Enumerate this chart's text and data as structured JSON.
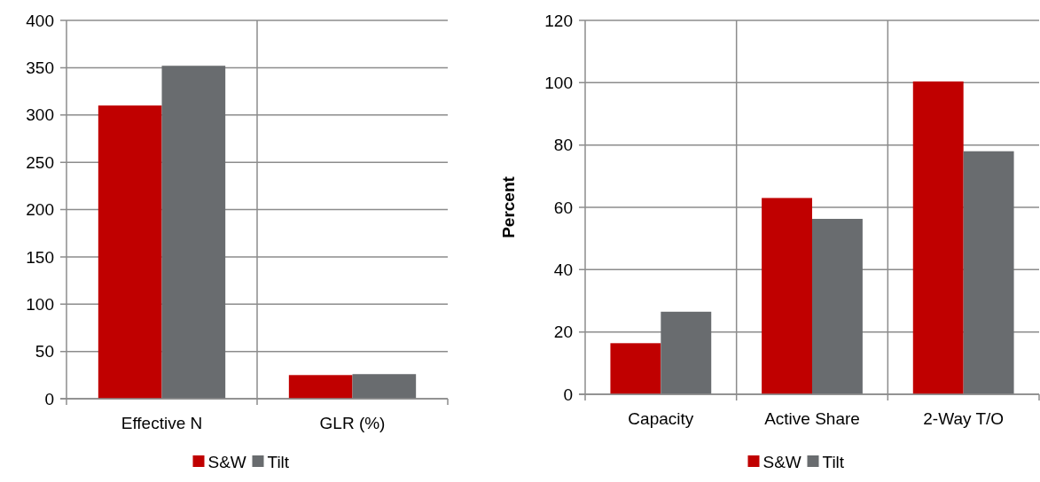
{
  "chart_data": [
    {
      "type": "bar",
      "categories": [
        "Effective N",
        "GLR (%)"
      ],
      "series": [
        {
          "name": "S&W",
          "color": "#c00000",
          "values": [
            310,
            25
          ]
        },
        {
          "name": "Tilt",
          "color": "#696c6f",
          "values": [
            352,
            26
          ]
        }
      ],
      "ylim": [
        0,
        400
      ],
      "yticks": [
        0,
        50,
        100,
        150,
        200,
        250,
        300,
        350,
        400
      ],
      "grid": true,
      "legend": "bottom"
    },
    {
      "type": "bar",
      "ylabel": "Percent",
      "categories": [
        "Capacity",
        "Active Share",
        "2-Way T/O"
      ],
      "series": [
        {
          "name": "S&W",
          "color": "#c00000",
          "values": [
            16.4,
            63,
            100.4
          ]
        },
        {
          "name": "Tilt",
          "color": "#696c6f",
          "values": [
            26.5,
            56.3,
            78
          ]
        }
      ],
      "ylim": [
        0,
        120
      ],
      "yticks": [
        0,
        20,
        40,
        60,
        80,
        100,
        120
      ],
      "grid": true,
      "legend": "bottom"
    }
  ]
}
